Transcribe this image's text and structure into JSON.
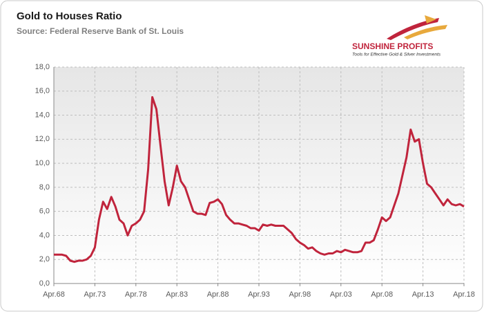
{
  "chart_data": {
    "type": "line",
    "title": "Gold to Houses Ratio",
    "subtitle": "Source: Federal Reserve Bank of St. Louis",
    "logo": {
      "name": "SUNSHINE PROFITS",
      "tagline": "Tools for Effective Gold & Silver Investments"
    },
    "color": "#c0243c",
    "grid": true,
    "categories": [
      "Apr.68",
      null,
      null,
      null,
      null,
      null,
      null,
      null,
      null,
      null,
      "Apr.73",
      null,
      null,
      null,
      null,
      null,
      null,
      null,
      null,
      null,
      "Apr.78",
      null,
      null,
      null,
      null,
      null,
      null,
      null,
      null,
      null,
      "Apr.83",
      null,
      null,
      null,
      null,
      null,
      null,
      null,
      null,
      null,
      "Apr.88",
      null,
      null,
      null,
      null,
      null,
      null,
      null,
      null,
      null,
      "Apr.93",
      null,
      null,
      null,
      null,
      null,
      null,
      null,
      null,
      null,
      "Apr.98",
      null,
      null,
      null,
      null,
      null,
      null,
      null,
      null,
      null,
      "Apr.03",
      null,
      null,
      null,
      null,
      null,
      null,
      null,
      null,
      null,
      "Apr.08",
      null,
      null,
      null,
      null,
      null,
      null,
      null,
      null,
      null,
      "Apr.13",
      null,
      null,
      null,
      null,
      null,
      null,
      null,
      null,
      null,
      "Apr.18"
    ],
    "values": [
      2.4,
      2.4,
      2.4,
      2.3,
      1.9,
      1.8,
      1.9,
      1.9,
      2.0,
      2.3,
      3.0,
      5.3,
      6.8,
      6.2,
      7.2,
      6.4,
      5.3,
      5.0,
      4.0,
      4.8,
      5.0,
      5.3,
      6.0,
      9.5,
      15.5,
      14.5,
      11.5,
      8.5,
      6.5,
      8.0,
      9.8,
      8.5,
      8.0,
      7.0,
      6.0,
      5.8,
      5.8,
      5.7,
      6.7,
      6.8,
      7.0,
      6.6,
      5.7,
      5.3,
      5.0,
      5.0,
      4.9,
      4.8,
      4.6,
      4.6,
      4.4,
      4.9,
      4.8,
      4.9,
      4.8,
      4.8,
      4.8,
      4.5,
      4.2,
      3.7,
      3.4,
      3.2,
      2.9,
      3.0,
      2.7,
      2.5,
      2.4,
      2.5,
      2.5,
      2.7,
      2.6,
      2.8,
      2.7,
      2.6,
      2.6,
      2.7,
      3.4,
      3.4,
      3.6,
      4.5,
      5.5,
      5.2,
      5.5,
      6.5,
      7.5,
      9.0,
      10.5,
      12.8,
      11.8,
      12.0,
      10.0,
      8.3,
      8.0,
      7.5,
      7.0,
      6.5,
      7.0,
      6.6,
      6.5,
      6.6,
      6.4
    ],
    "ylim": [
      0,
      18
    ],
    "yticks": [
      {
        "value": 0,
        "label": "0,0"
      },
      {
        "value": 2,
        "label": "2,0"
      },
      {
        "value": 4,
        "label": "4,0"
      },
      {
        "value": 6,
        "label": "6,0"
      },
      {
        "value": 8,
        "label": "8,0"
      },
      {
        "value": 10,
        "label": "10,0"
      },
      {
        "value": 12,
        "label": "12,0"
      },
      {
        "value": 14,
        "label": "14,0"
      },
      {
        "value": 16,
        "label": "16,0"
      },
      {
        "value": 18,
        "label": "18,0"
      }
    ]
  }
}
